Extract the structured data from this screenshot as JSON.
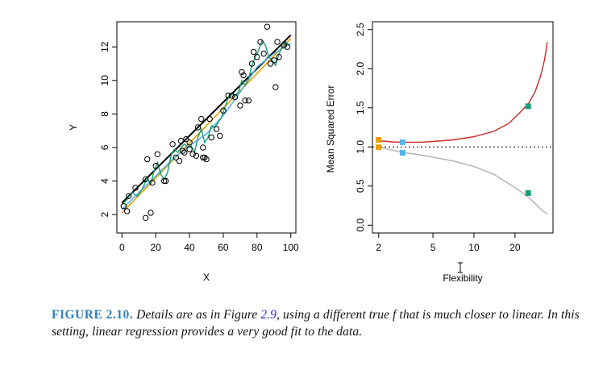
{
  "chart_data": [
    {
      "type": "scatter",
      "xlabel": "X",
      "ylabel": "Y",
      "xlim": [
        -3,
        103
      ],
      "ylim": [
        0.9,
        13.5
      ],
      "x_ticks": [
        0,
        20,
        40,
        60,
        80,
        100
      ],
      "y_ticks": [
        2,
        4,
        6,
        8,
        10,
        12
      ],
      "points": [
        [
          1,
          2.5
        ],
        [
          3,
          2.2
        ],
        [
          4,
          3.1
        ],
        [
          8,
          3.6
        ],
        [
          14,
          1.8
        ],
        [
          14,
          4.1
        ],
        [
          15,
          5.3
        ],
        [
          17,
          2.1
        ],
        [
          18,
          3.9
        ],
        [
          20,
          4.9
        ],
        [
          21,
          5.6
        ],
        [
          25,
          4.0
        ],
        [
          26,
          4.0
        ],
        [
          30,
          6.2
        ],
        [
          32,
          5.4
        ],
        [
          34,
          5.2
        ],
        [
          35,
          6.4
        ],
        [
          36,
          5.8
        ],
        [
          37,
          5.7
        ],
        [
          38,
          6.5
        ],
        [
          40,
          6.3
        ],
        [
          40,
          5.9
        ],
        [
          42,
          5.6
        ],
        [
          44,
          5.5
        ],
        [
          45,
          7.2
        ],
        [
          47,
          7.7
        ],
        [
          48,
          6.0
        ],
        [
          48,
          5.4
        ],
        [
          49,
          5.4
        ],
        [
          50,
          5.3
        ],
        [
          52,
          7.7
        ],
        [
          53,
          6.6
        ],
        [
          56,
          7.1
        ],
        [
          58,
          6.7
        ],
        [
          60,
          8.2
        ],
        [
          63,
          9.1
        ],
        [
          65,
          9.1
        ],
        [
          67,
          9.0
        ],
        [
          70,
          8.5
        ],
        [
          71,
          10.5
        ],
        [
          72,
          10.3
        ],
        [
          73,
          8.8
        ],
        [
          75,
          8.8
        ],
        [
          77,
          11.0
        ],
        [
          78,
          11.7
        ],
        [
          80,
          11.4
        ],
        [
          82,
          12.3
        ],
        [
          84,
          11.6
        ],
        [
          86,
          13.2
        ],
        [
          88,
          11.0
        ],
        [
          90,
          11.2
        ],
        [
          91,
          9.6
        ],
        [
          92,
          12.3
        ],
        [
          93,
          11.4
        ],
        [
          96,
          12.1
        ],
        [
          98,
          12.0
        ]
      ],
      "lines": [
        {
          "color": "#000000",
          "width": 2,
          "points": [
            [
              0,
              2.7
            ],
            [
              100,
              12.7
            ]
          ]
        },
        {
          "color": "#e69f00",
          "width": 1.6,
          "points": [
            [
              0,
              2.1
            ],
            [
              100,
              12.5
            ]
          ]
        },
        {
          "color": "#56b4e9",
          "width": 1.6,
          "points": [
            [
              0,
              2.3
            ],
            [
              10,
              3.3
            ],
            [
              20,
              4.3
            ],
            [
              30,
              5.3
            ],
            [
              40,
              6.1
            ],
            [
              50,
              6.8
            ],
            [
              60,
              7.9
            ],
            [
              70,
              9.3
            ],
            [
              80,
              10.8
            ],
            [
              90,
              11.6
            ],
            [
              100,
              12.2
            ]
          ]
        },
        {
          "color": "#1b9e77",
          "width": 1.4,
          "points": [
            [
              0,
              2.6
            ],
            [
              3,
              2.9
            ],
            [
              6,
              3.3
            ],
            [
              9,
              3.1
            ],
            [
              12,
              3.5
            ],
            [
              15,
              4.2
            ],
            [
              17,
              3.8
            ],
            [
              19,
              4.6
            ],
            [
              21,
              5.1
            ],
            [
              23,
              4.4
            ],
            [
              25,
              4.1
            ],
            [
              27,
              4.5
            ],
            [
              29,
              5.5
            ],
            [
              31,
              5.9
            ],
            [
              33,
              5.7
            ],
            [
              35,
              6.0
            ],
            [
              37,
              6.2
            ],
            [
              39,
              6.0
            ],
            [
              41,
              6.1
            ],
            [
              43,
              5.7
            ],
            [
              45,
              6.6
            ],
            [
              47,
              7.1
            ],
            [
              49,
              6.3
            ],
            [
              51,
              6.6
            ],
            [
              53,
              7.3
            ],
            [
              55,
              7.2
            ],
            [
              57,
              7.5
            ],
            [
              59,
              7.8
            ],
            [
              61,
              8.4
            ],
            [
              63,
              9.0
            ],
            [
              65,
              9.2
            ],
            [
              67,
              9.1
            ],
            [
              69,
              9.3
            ],
            [
              71,
              10.0
            ],
            [
              73,
              9.7
            ],
            [
              75,
              10.1
            ],
            [
              77,
              10.9
            ],
            [
              79,
              11.4
            ],
            [
              81,
              11.8
            ],
            [
              83,
              12.4
            ],
            [
              85,
              12.1
            ],
            [
              87,
              11.4
            ],
            [
              89,
              11.2
            ],
            [
              91,
              10.9
            ],
            [
              93,
              11.6
            ],
            [
              95,
              12.0
            ],
            [
              97,
              12.3
            ],
            [
              99,
              12.1
            ]
          ]
        }
      ]
    },
    {
      "type": "line",
      "xlabel": "Flexibility",
      "ylabel": "Mean Squared Error",
      "x_scale": "log",
      "xlim": [
        1.8,
        38
      ],
      "ylim": [
        -0.1,
        2.6
      ],
      "x_ticks": [
        2,
        5,
        10,
        20
      ],
      "y_ticks": [
        0.0,
        0.5,
        1.0,
        1.5,
        2.0,
        2.5
      ],
      "reference_line": {
        "y": 1.0,
        "style": "dotted",
        "color": "#000000"
      },
      "series": [
        {
          "color": "#cc2a2a",
          "points": [
            [
              2,
              1.08
            ],
            [
              2.5,
              1.065
            ],
            [
              3,
              1.06
            ],
            [
              4,
              1.06
            ],
            [
              5,
              1.07
            ],
            [
              7,
              1.09
            ],
            [
              10,
              1.13
            ],
            [
              14,
              1.2
            ],
            [
              18,
              1.3
            ],
            [
              22,
              1.45
            ],
            [
              25,
              1.55
            ],
            [
              28,
              1.7
            ],
            [
              31,
              1.92
            ],
            [
              33,
              2.12
            ],
            [
              34.5,
              2.34
            ]
          ]
        },
        {
          "color": "#b0b0b0",
          "points": [
            [
              2,
              1.0
            ],
            [
              2.5,
              0.96
            ],
            [
              3,
              0.93
            ],
            [
              4,
              0.9
            ],
            [
              5,
              0.87
            ],
            [
              7,
              0.82
            ],
            [
              10,
              0.75
            ],
            [
              14,
              0.65
            ],
            [
              18,
              0.53
            ],
            [
              22,
              0.43
            ],
            [
              25,
              0.36
            ],
            [
              28,
              0.28
            ],
            [
              31,
              0.2
            ],
            [
              34.5,
              0.14
            ]
          ]
        }
      ],
      "markers": [
        {
          "x": 2,
          "y": 1.09,
          "color": "#e69f00"
        },
        {
          "x": 2,
          "y": 0.995,
          "color": "#e69f00"
        },
        {
          "x": 3,
          "y": 1.06,
          "color": "#56b4e9"
        },
        {
          "x": 3,
          "y": 0.925,
          "color": "#56b4e9"
        },
        {
          "x": 25,
          "y": 1.52,
          "color": "#1b9e77"
        },
        {
          "x": 25,
          "y": 0.41,
          "color": "#1b9e77"
        }
      ]
    }
  ],
  "caption": {
    "label": "FIGURE 2.10.",
    "text_before": "Details are as in Figure",
    "ref": "2.9",
    "text_after": ", using a different true f that is much closer to linear. In this setting, linear regression provides a very good fit to the data."
  }
}
